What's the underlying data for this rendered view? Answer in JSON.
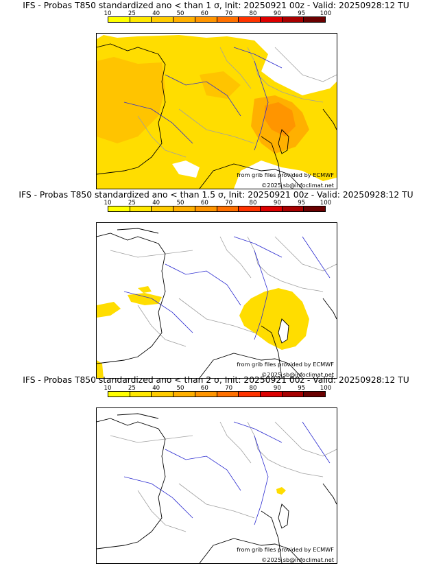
{
  "colorbar": {
    "ticks": [
      "10",
      "25",
      "40",
      "50",
      "60",
      "70",
      "80",
      "90",
      "95",
      "100"
    ],
    "colors": [
      "#ffff00",
      "#ffe800",
      "#ffcc00",
      "#ffb000",
      "#ff9500",
      "#ff7000",
      "#ff3300",
      "#dd0000",
      "#a80000",
      "#6a0000"
    ]
  },
  "colors": {
    "river": "#2b2bd0",
    "border": "#a0a0a0",
    "coast": "#000000"
  },
  "panels": [
    {
      "title": "IFS - Probas T850  standardized ano < than 1 σ, Init: 20250921 00z - Valid: 20250928:12 TU",
      "source": "from grib files provided by ECMWF",
      "copyright": "©2025 sb@infoclimat.net"
    },
    {
      "title": "IFS - Probas T850  standardized ano < than 1.5 σ, Init: 20250921 00z - Valid: 20250928:12 TU",
      "source": "from grib files provided by ECMWF",
      "copyright": "©2025 sb@infoclimat.net"
    },
    {
      "title": "IFS - Probas T850  standardized ano < than 2 σ, Init: 20250921 00z - Valid: 20250928:12 TU",
      "source": "from grib files provided by ECMWF",
      "copyright": "©2025 sb@infoclimat.net"
    }
  ]
}
